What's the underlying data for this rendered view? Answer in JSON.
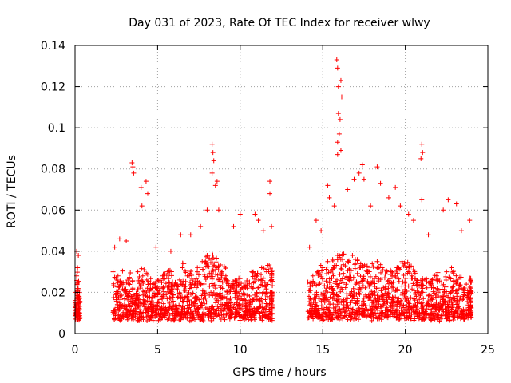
{
  "chart_data": {
    "type": "scatter",
    "title": "Day 031 of 2023, Rate Of TEC Index for receiver wlwy",
    "xlabel": "GPS time / hours",
    "ylabel": "ROTI / TECUs",
    "xlim": [
      0,
      25
    ],
    "ylim": [
      0,
      0.14
    ],
    "xticks": [
      "0",
      "5",
      "10",
      "15",
      "20",
      "25"
    ],
    "yticks": [
      "0",
      "0.02",
      "0.04",
      "0.06",
      "0.08",
      "0.1",
      "0.12",
      "0.14"
    ],
    "grid": true,
    "marker": "+",
    "color": "#ff0000",
    "series": [
      {
        "x": [
          0.0,
          0.05,
          0.1,
          0.15,
          0.2,
          0.25,
          2.3,
          2.6,
          2.9,
          3.2,
          3.5,
          3.8,
          4.1,
          4.4,
          4.7,
          5.0,
          5.3,
          5.6,
          5.9,
          6.2,
          6.5,
          6.8,
          7.1,
          7.4,
          7.7,
          8.0,
          8.3,
          8.6,
          8.9,
          9.2,
          9.5,
          9.8,
          10.1,
          10.4,
          10.7,
          11.0,
          11.3,
          11.6,
          11.9,
          14.1,
          14.4,
          14.7,
          15.0,
          15.3,
          15.6,
          15.9,
          16.2,
          16.5,
          16.8,
          17.1,
          17.4,
          17.7,
          18.0,
          18.3,
          18.6,
          18.9,
          19.2,
          19.5,
          19.8,
          20.1,
          20.4,
          20.7,
          21.0,
          21.3,
          21.6,
          21.9,
          22.2,
          22.5,
          22.8,
          23.1,
          23.4,
          23.7,
          23.95
        ],
        "y": [
          0.015,
          0.02,
          0.028,
          0.032,
          0.025,
          0.018,
          0.03,
          0.028,
          0.024,
          0.026,
          0.022,
          0.03,
          0.028,
          0.025,
          0.024,
          0.026,
          0.028,
          0.03,
          0.025,
          0.024,
          0.032,
          0.028,
          0.026,
          0.03,
          0.035,
          0.038,
          0.036,
          0.032,
          0.03,
          0.025,
          0.024,
          0.026,
          0.022,
          0.025,
          0.03,
          0.028,
          0.032,
          0.03,
          0.03,
          0.025,
          0.028,
          0.03,
          0.032,
          0.035,
          0.036,
          0.038,
          0.036,
          0.035,
          0.038,
          0.036,
          0.032,
          0.03,
          0.034,
          0.035,
          0.032,
          0.03,
          0.028,
          0.032,
          0.035,
          0.032,
          0.028,
          0.026,
          0.025,
          0.025,
          0.026,
          0.028,
          0.025,
          0.03,
          0.032,
          0.025,
          0.022,
          0.024,
          0.026
        ]
      }
    ],
    "peaks": [
      {
        "x": 0.1,
        "y": 0.04
      },
      {
        "x": 0.2,
        "y": 0.038
      },
      {
        "x": 2.4,
        "y": 0.042
      },
      {
        "x": 2.7,
        "y": 0.046
      },
      {
        "x": 3.1,
        "y": 0.045
      },
      {
        "x": 3.45,
        "y": 0.083
      },
      {
        "x": 3.5,
        "y": 0.081
      },
      {
        "x": 3.55,
        "y": 0.078
      },
      {
        "x": 4.0,
        "y": 0.071
      },
      {
        "x": 4.05,
        "y": 0.062
      },
      {
        "x": 4.3,
        "y": 0.074
      },
      {
        "x": 4.4,
        "y": 0.068
      },
      {
        "x": 4.9,
        "y": 0.042
      },
      {
        "x": 5.8,
        "y": 0.04
      },
      {
        "x": 6.4,
        "y": 0.048
      },
      {
        "x": 7.0,
        "y": 0.048
      },
      {
        "x": 7.6,
        "y": 0.052
      },
      {
        "x": 8.0,
        "y": 0.06
      },
      {
        "x": 8.3,
        "y": 0.092
      },
      {
        "x": 8.35,
        "y": 0.088
      },
      {
        "x": 8.4,
        "y": 0.084
      },
      {
        "x": 8.3,
        "y": 0.078
      },
      {
        "x": 8.5,
        "y": 0.072
      },
      {
        "x": 8.6,
        "y": 0.074
      },
      {
        "x": 8.7,
        "y": 0.06
      },
      {
        "x": 9.6,
        "y": 0.052
      },
      {
        "x": 10.0,
        "y": 0.058
      },
      {
        "x": 10.9,
        "y": 0.058
      },
      {
        "x": 11.1,
        "y": 0.055
      },
      {
        "x": 11.4,
        "y": 0.05
      },
      {
        "x": 11.8,
        "y": 0.074
      },
      {
        "x": 11.8,
        "y": 0.068
      },
      {
        "x": 11.9,
        "y": 0.052
      },
      {
        "x": 14.2,
        "y": 0.042
      },
      {
        "x": 14.6,
        "y": 0.055
      },
      {
        "x": 14.9,
        "y": 0.05
      },
      {
        "x": 15.3,
        "y": 0.072
      },
      {
        "x": 15.4,
        "y": 0.066
      },
      {
        "x": 15.7,
        "y": 0.062
      },
      {
        "x": 15.85,
        "y": 0.133
      },
      {
        "x": 15.9,
        "y": 0.129
      },
      {
        "x": 15.95,
        "y": 0.12
      },
      {
        "x": 16.1,
        "y": 0.123
      },
      {
        "x": 16.15,
        "y": 0.115
      },
      {
        "x": 15.95,
        "y": 0.107
      },
      {
        "x": 16.05,
        "y": 0.104
      },
      {
        "x": 16.0,
        "y": 0.097
      },
      {
        "x": 15.9,
        "y": 0.093
      },
      {
        "x": 16.1,
        "y": 0.089
      },
      {
        "x": 15.9,
        "y": 0.087
      },
      {
        "x": 16.5,
        "y": 0.07
      },
      {
        "x": 16.9,
        "y": 0.075
      },
      {
        "x": 17.2,
        "y": 0.078
      },
      {
        "x": 17.4,
        "y": 0.082
      },
      {
        "x": 17.5,
        "y": 0.075
      },
      {
        "x": 17.9,
        "y": 0.062
      },
      {
        "x": 18.3,
        "y": 0.081
      },
      {
        "x": 18.5,
        "y": 0.073
      },
      {
        "x": 19.0,
        "y": 0.066
      },
      {
        "x": 19.4,
        "y": 0.071
      },
      {
        "x": 19.7,
        "y": 0.062
      },
      {
        "x": 20.2,
        "y": 0.058
      },
      {
        "x": 20.5,
        "y": 0.055
      },
      {
        "x": 21.0,
        "y": 0.092
      },
      {
        "x": 21.05,
        "y": 0.088
      },
      {
        "x": 20.95,
        "y": 0.085
      },
      {
        "x": 21.0,
        "y": 0.065
      },
      {
        "x": 21.4,
        "y": 0.048
      },
      {
        "x": 22.3,
        "y": 0.06
      },
      {
        "x": 22.6,
        "y": 0.065
      },
      {
        "x": 23.1,
        "y": 0.063
      },
      {
        "x": 23.4,
        "y": 0.05
      },
      {
        "x": 23.9,
        "y": 0.055
      }
    ]
  }
}
